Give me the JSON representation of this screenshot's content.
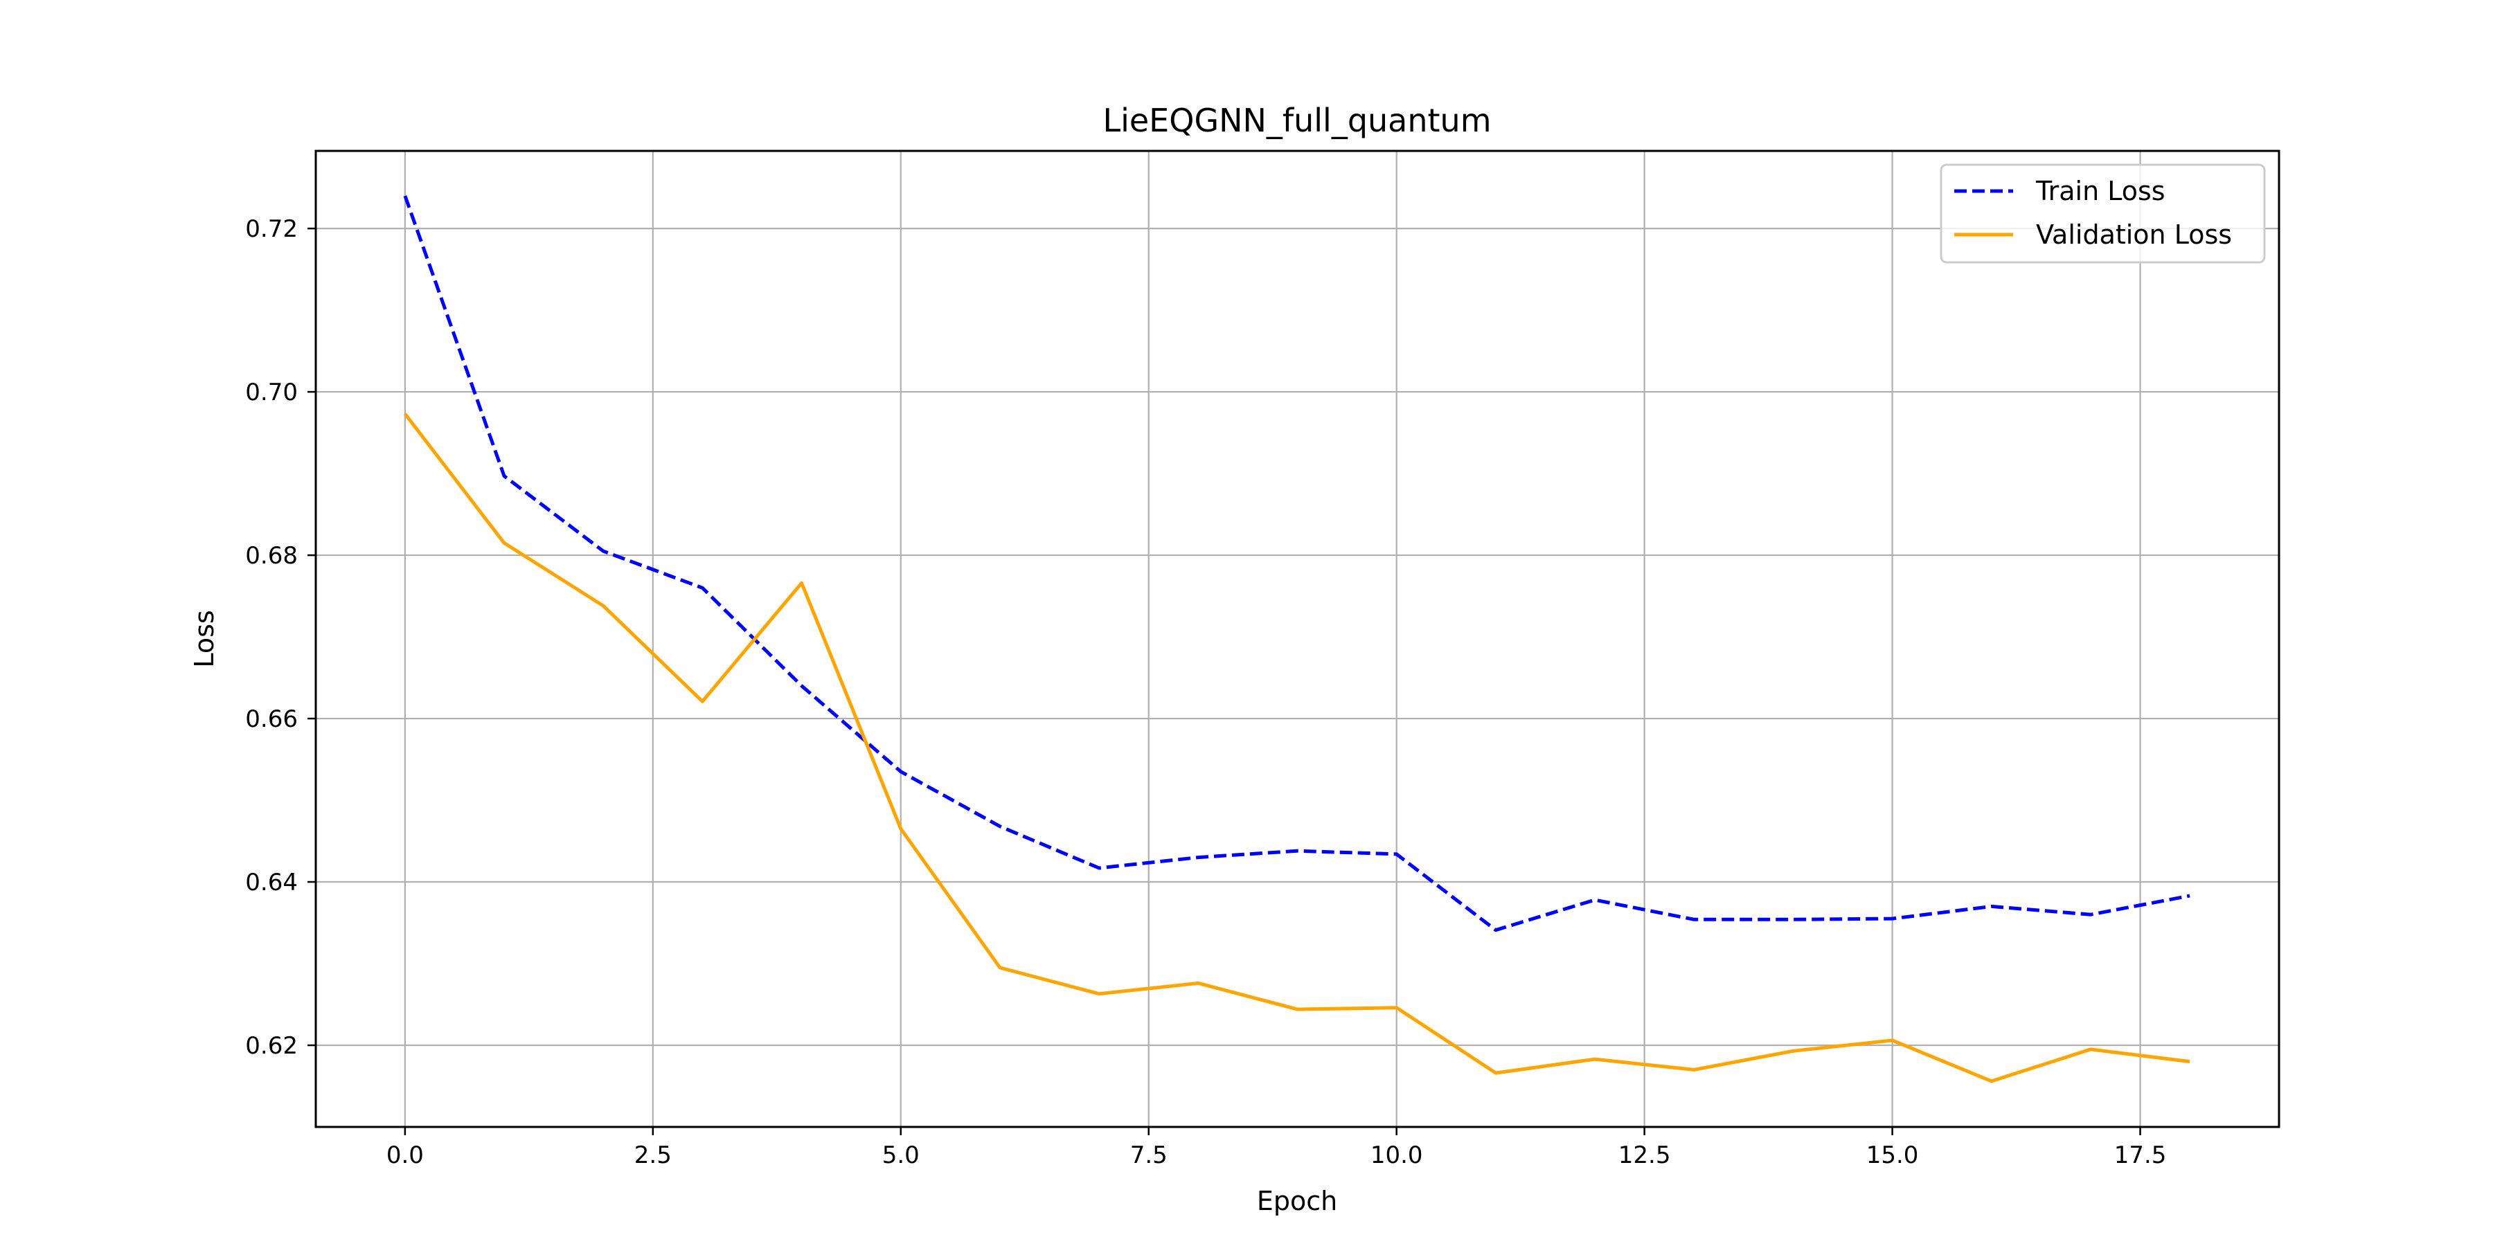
{
  "chart_data": {
    "type": "line",
    "title": "LieEQGNN_full_quantum",
    "xlabel": "Epoch",
    "ylabel": "Loss",
    "xlim": [
      -0.9,
      18.9
    ],
    "ylim": [
      0.61,
      0.7295
    ],
    "xticks": [
      0,
      2.5,
      5,
      7.5,
      10,
      12.5,
      15,
      17.5
    ],
    "xtick_labels": [
      "0.0",
      "2.5",
      "5.0",
      "7.5",
      "10.0",
      "12.5",
      "15.0",
      "17.5"
    ],
    "yticks": [
      0.62,
      0.64,
      0.66,
      0.68,
      0.7,
      0.72
    ],
    "ytick_labels": [
      "0.62",
      "0.64",
      "0.66",
      "0.68",
      "0.70",
      "0.72"
    ],
    "grid": true,
    "legend_position": "top-right",
    "x": [
      0,
      1,
      2,
      3,
      4,
      5,
      6,
      7,
      8,
      9,
      10,
      11,
      12,
      13,
      14,
      15,
      16,
      17,
      18
    ],
    "series": [
      {
        "name": "Train Loss",
        "color": "#0000ff",
        "style": "dashed",
        "values": [
          0.724,
          0.6897,
          0.6805,
          0.676,
          0.664,
          0.6535,
          0.6468,
          0.6417,
          0.643,
          0.6438,
          0.6434,
          0.6341,
          0.6378,
          0.6354,
          0.6354,
          0.6355,
          0.637,
          0.636,
          0.6383
        ]
      },
      {
        "name": "Validation Loss",
        "color": "#ffa500",
        "style": "solid",
        "values": [
          0.6973,
          0.6815,
          0.6738,
          0.6621,
          0.6766,
          0.6465,
          0.6295,
          0.6263,
          0.6276,
          0.6244,
          0.6246,
          0.6166,
          0.6183,
          0.617,
          0.6193,
          0.6206,
          0.6156,
          0.6195,
          0.618
        ]
      }
    ]
  }
}
